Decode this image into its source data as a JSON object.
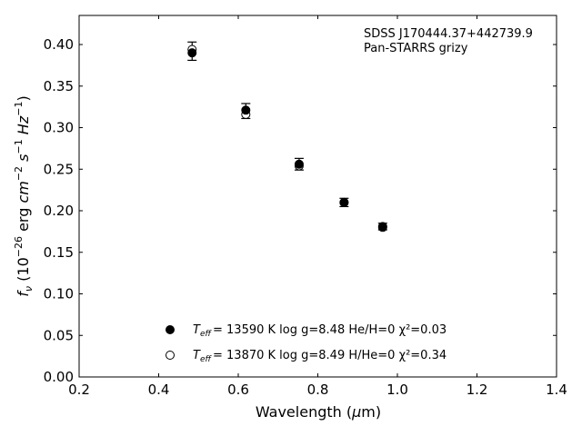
{
  "chart_data": {
    "type": "scatter",
    "annotation_lines": [
      "SDSS J170444.37+442739.9",
      "Pan-STARRS grizy"
    ],
    "xlabel": "Wavelength (μm)",
    "ylabel": "fν (10⁻²⁶ erg cm⁻² s⁻¹ Hz⁻¹)",
    "xlim": [
      0.2,
      1.4
    ],
    "ylim": [
      0.0,
      0.435
    ],
    "xticks": [
      "0.2",
      "0.4",
      "0.6",
      "0.8",
      "1.0",
      "1.2",
      "1.4"
    ],
    "yticks": [
      "0.00",
      "0.05",
      "0.10",
      "0.15",
      "0.20",
      "0.25",
      "0.30",
      "0.35",
      "0.40"
    ],
    "grid": false,
    "legend_position": "lower-left",
    "observed": {
      "x": [
        0.484,
        0.619,
        0.753,
        0.866,
        0.963
      ],
      "y": [
        0.392,
        0.32,
        0.256,
        0.21,
        0.181
      ],
      "yerr": [
        0.011,
        0.009,
        0.007,
        0.005,
        0.004
      ]
    },
    "series": [
      {
        "legend_text": "= 13590 K  log g=8.48  He/H=0  χ²=0.03",
        "marker": "filled-circle",
        "x": [
          0.484,
          0.619,
          0.753,
          0.866,
          0.963
        ],
        "y": [
          0.39,
          0.321,
          0.256,
          0.21,
          0.181
        ]
      },
      {
        "legend_text": "= 13870 K  log g=8.49  H/He=0  χ²=0.34",
        "marker": "open-circle",
        "x": [
          0.484,
          0.619,
          0.753,
          0.866,
          0.963
        ],
        "y": [
          0.394,
          0.316,
          0.254,
          0.21,
          0.18
        ]
      }
    ]
  }
}
